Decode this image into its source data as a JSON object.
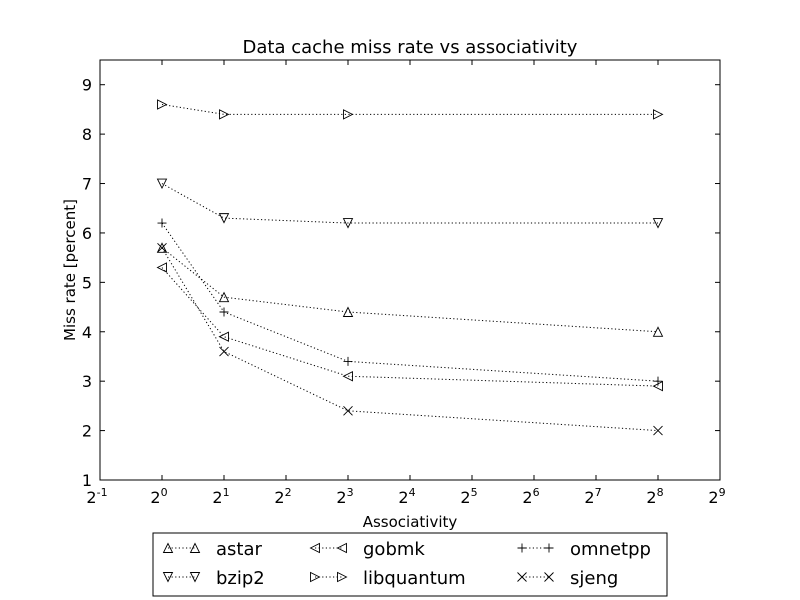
{
  "chart_data": {
    "type": "line",
    "title": "Data cache miss rate vs associativity",
    "xlabel": "Associativity",
    "ylabel": "Miss rate [percent]",
    "x_scale": "log2",
    "x_ticks": [
      {
        "value": 0.5,
        "base": "2",
        "exp": "-1"
      },
      {
        "value": 1,
        "base": "2",
        "exp": "0"
      },
      {
        "value": 2,
        "base": "2",
        "exp": "1"
      },
      {
        "value": 4,
        "base": "2",
        "exp": "2"
      },
      {
        "value": 8,
        "base": "2",
        "exp": "3"
      },
      {
        "value": 16,
        "base": "2",
        "exp": "4"
      },
      {
        "value": 32,
        "base": "2",
        "exp": "5"
      },
      {
        "value": 64,
        "base": "2",
        "exp": "6"
      },
      {
        "value": 128,
        "base": "2",
        "exp": "7"
      },
      {
        "value": 256,
        "base": "2",
        "exp": "8"
      },
      {
        "value": 512,
        "base": "2",
        "exp": "9"
      }
    ],
    "y_ticks": [
      "1",
      "2",
      "3",
      "4",
      "5",
      "6",
      "7",
      "8",
      "9"
    ],
    "xlim": [
      0.5,
      512
    ],
    "ylim": [
      1,
      9.5
    ],
    "x": [
      1,
      2,
      8,
      256
    ],
    "grid": false,
    "legend_position": "below",
    "series": [
      {
        "name": "astar",
        "marker": "triangle-up",
        "values": [
          5.7,
          4.7,
          4.4,
          4.0
        ]
      },
      {
        "name": "bzip2",
        "marker": "triangle-down",
        "values": [
          7.0,
          6.3,
          6.2,
          6.2
        ]
      },
      {
        "name": "gobmk",
        "marker": "triangle-left",
        "values": [
          5.3,
          3.9,
          3.1,
          2.9
        ]
      },
      {
        "name": "libquantum",
        "marker": "triangle-right",
        "values": [
          8.6,
          8.4,
          8.4,
          8.4
        ]
      },
      {
        "name": "omnetpp",
        "marker": "plus",
        "values": [
          6.2,
          4.4,
          3.4,
          3.0
        ]
      },
      {
        "name": "sjeng",
        "marker": "x",
        "values": [
          5.7,
          3.6,
          2.4,
          2.0
        ]
      }
    ]
  }
}
